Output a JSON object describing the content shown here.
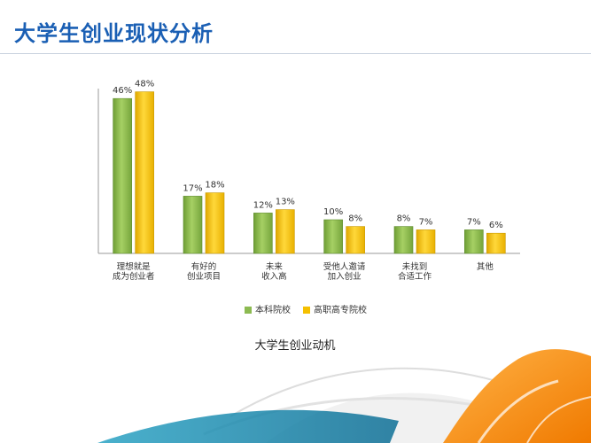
{
  "slide": {
    "title": "大学生创业现状分析"
  },
  "chart_data": {
    "type": "bar",
    "title": "",
    "caption": "大学生创业动机",
    "xlabel": "",
    "ylabel": "",
    "ylim": [
      0,
      50
    ],
    "grid": false,
    "legend_position": "bottom",
    "categories": [
      [
        "理想就是",
        "成为创业者"
      ],
      [
        "有好的",
        "创业项目"
      ],
      [
        "未来",
        "收入高"
      ],
      [
        "受他人邀请",
        "加入创业"
      ],
      [
        "未找到",
        "合适工作"
      ],
      [
        "其他"
      ]
    ],
    "series": [
      {
        "name": "本科院校",
        "color": "#8cba51",
        "values": [
          46,
          17,
          12,
          10,
          8,
          7
        ],
        "labels": [
          "46%",
          "17%",
          "12%",
          "10%",
          "8%",
          "7%"
        ]
      },
      {
        "name": "高职高专院校",
        "color": "#f5c000",
        "values": [
          48,
          18,
          13,
          8,
          7,
          6
        ],
        "labels": [
          "48%",
          "18%",
          "13%",
          "8%",
          "7%",
          "6%"
        ]
      }
    ]
  }
}
